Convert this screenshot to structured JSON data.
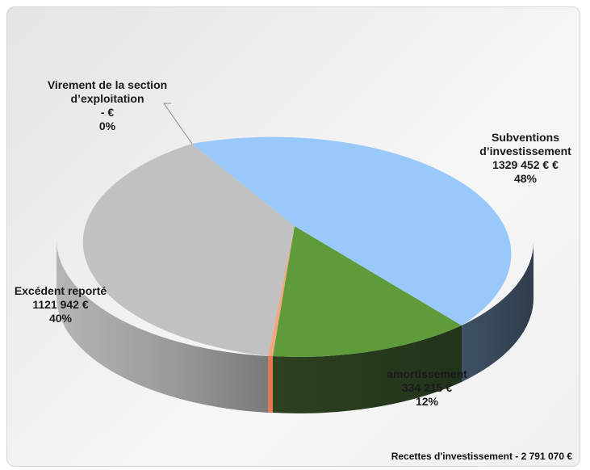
{
  "chart_data": {
    "type": "pie",
    "subtitle": "Recettes d'investissement - 2 791 070 €",
    "slices": [
      {
        "label": "Subventions d’investissement",
        "name_lines": [
          "Subventions",
          "d’investissement"
        ],
        "value_text": "1329 452 €  €",
        "value": 1329452,
        "percent_text": "48%",
        "percent": 48,
        "color": "#99c9fa",
        "side_color": "#3c4c5e"
      },
      {
        "label": "amortissement",
        "name_lines": [
          "amortissement"
        ],
        "value_text": "334 215 €",
        "value": 334215,
        "percent_text": "12%",
        "percent": 12,
        "color": "#5f9a3b",
        "side_color": "#2c3d1c"
      },
      {
        "label": "Excédent reporté",
        "name_lines": [
          "Excédent reporté"
        ],
        "value_text": "1121 942 €",
        "value": 1121942,
        "percent_text": "40%",
        "percent": 40,
        "color": "#c1c1c1",
        "side_color": "#8e8e8e"
      },
      {
        "label": "Virement de la section d’exploitation",
        "name_lines": [
          "Virement de la section",
          "d’exploitation"
        ],
        "value_text": "-   €",
        "value": 0,
        "percent_text": "0%",
        "percent": 0,
        "color": "#f1a882",
        "side_color": "#e07a55"
      }
    ]
  }
}
